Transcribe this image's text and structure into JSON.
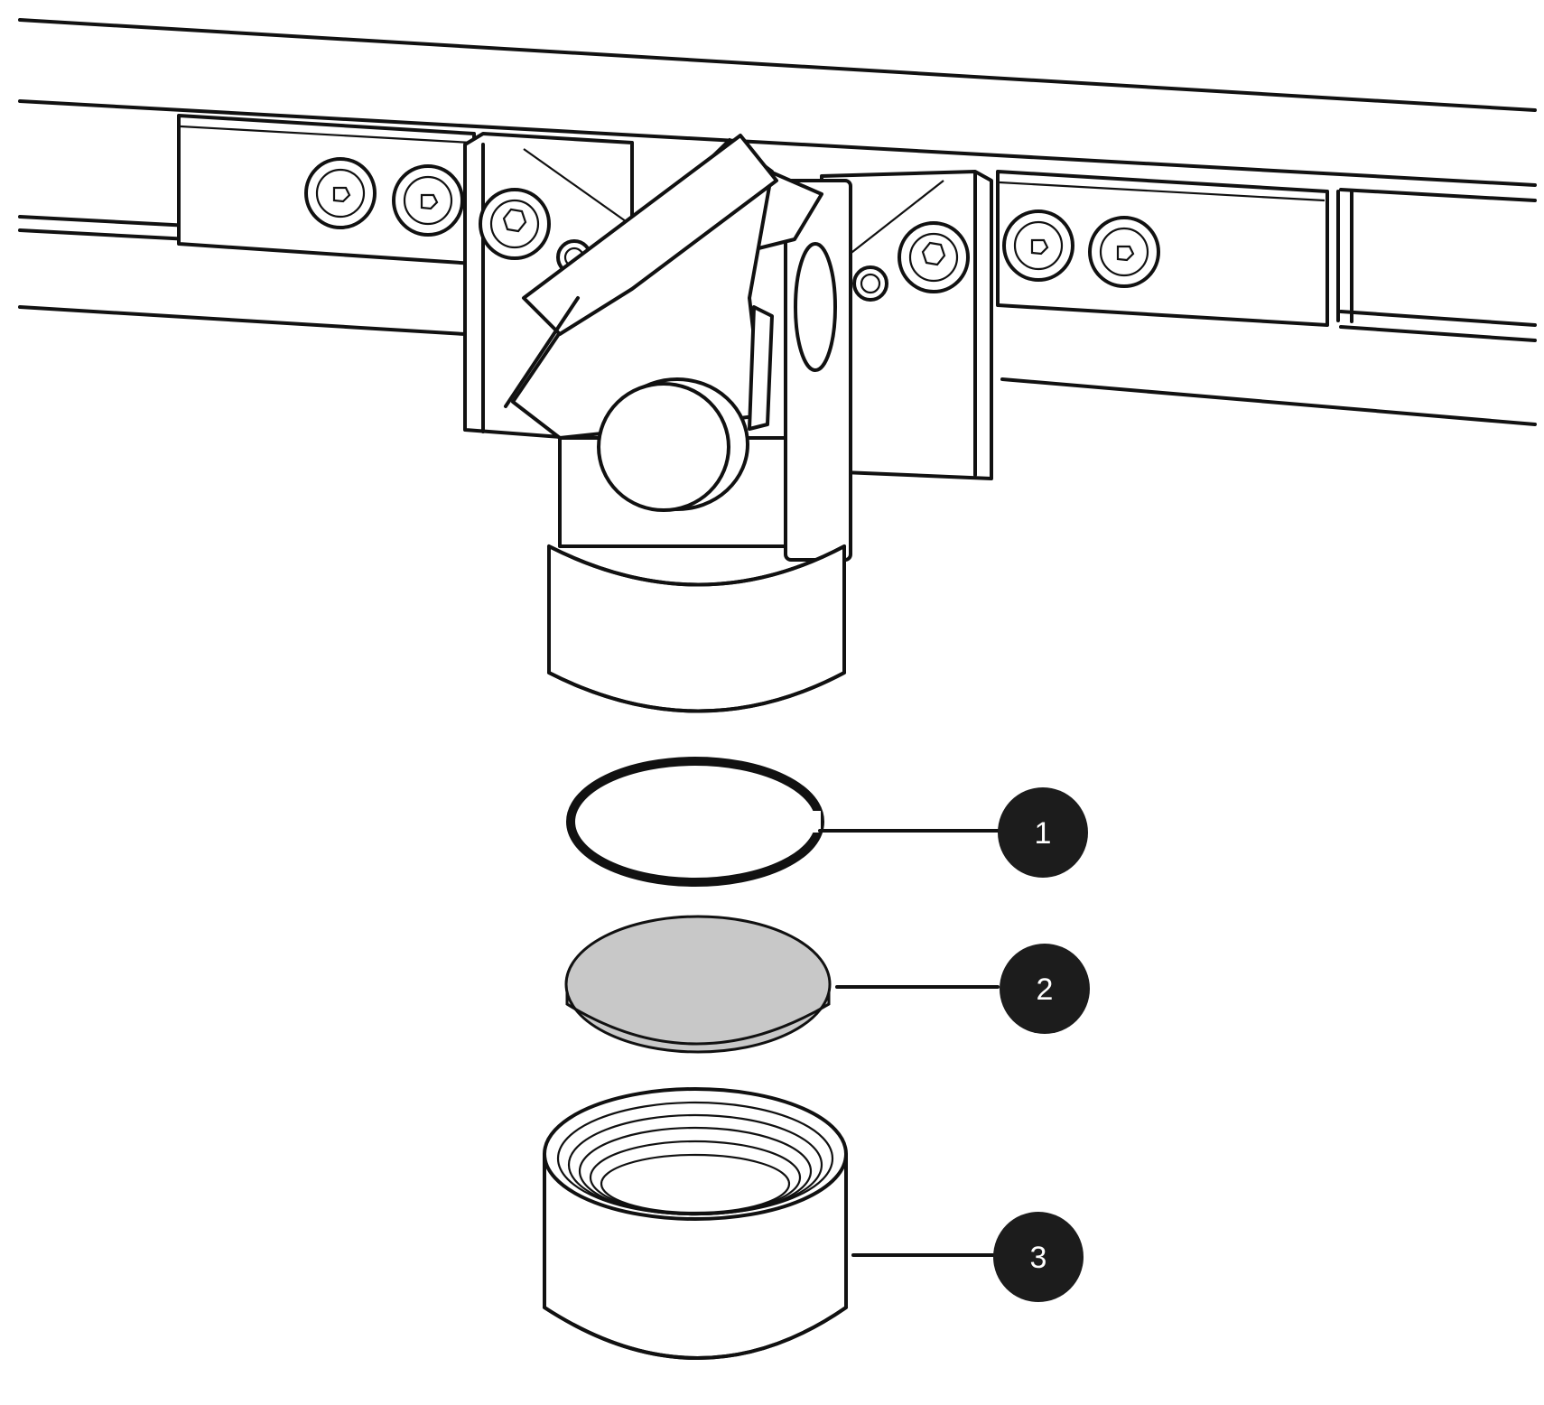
{
  "colors": {
    "line": "#111111",
    "background": "#ffffff",
    "lens_fill": "#c8c8c8",
    "callout_fill": "#1c1c1c",
    "callout_text": "#ffffff"
  },
  "callouts": [
    {
      "label": "1",
      "part": "o-ring"
    },
    {
      "label": "2",
      "part": "lens"
    },
    {
      "label": "3",
      "part": "threaded-cap"
    }
  ]
}
